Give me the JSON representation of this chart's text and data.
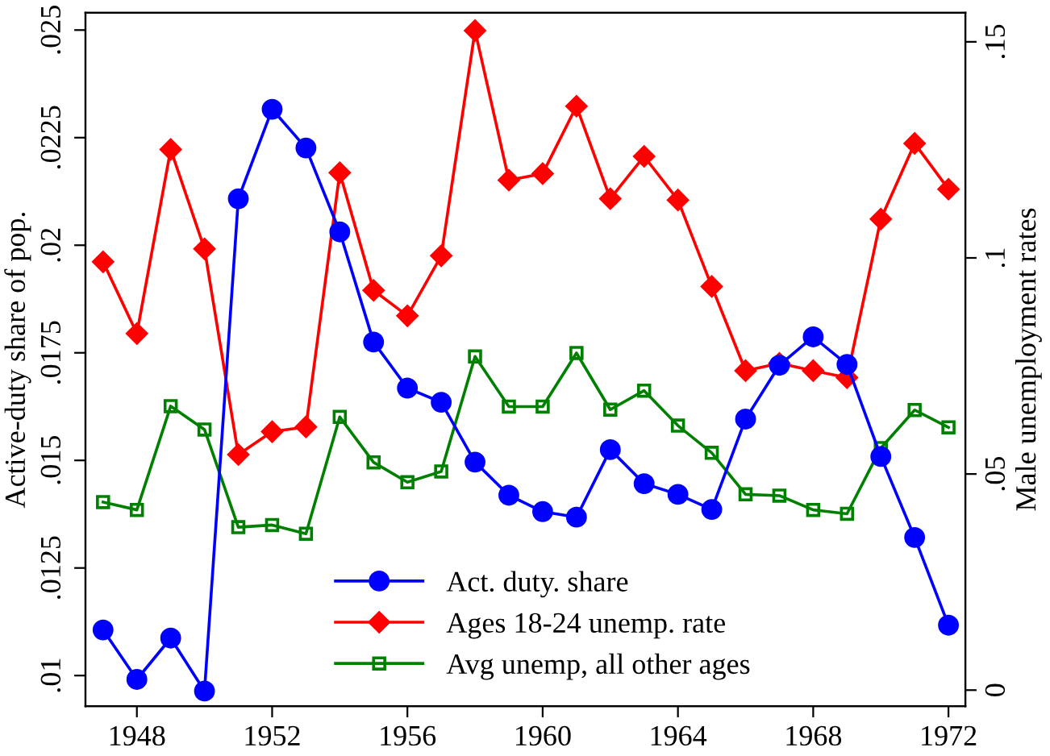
{
  "chart_data": {
    "type": "line",
    "ylabel": "Active-duty share of pop.",
    "y2label": "Male unemployment rates",
    "x": [
      1947,
      1948,
      1949,
      1950,
      1951,
      1952,
      1953,
      1954,
      1955,
      1956,
      1957,
      1958,
      1959,
      1960,
      1961,
      1962,
      1963,
      1964,
      1965,
      1966,
      1967,
      1968,
      1969,
      1970,
      1971,
      1972
    ],
    "series": [
      {
        "name": "Act. duty. share",
        "color": "#0000ff",
        "marker": "circle",
        "values": [
          0.01106,
          0.00991,
          0.01087,
          0.00964,
          0.02108,
          0.02316,
          0.02226,
          0.02031,
          0.01775,
          0.01668,
          0.01635,
          0.01496,
          0.01419,
          0.01381,
          0.01368,
          0.01525,
          0.01446,
          0.01421,
          0.01386,
          0.01596,
          0.01721,
          0.01787,
          0.01723,
          0.01509,
          0.01321,
          0.01117
        ]
      },
      {
        "name": "Ages 18-24 unemp. rate",
        "color": "#ff0000",
        "marker": "diamond",
        "axis": "y2",
        "values": [
          0.0991,
          0.0825,
          0.1251,
          0.1021,
          0.0545,
          0.0598,
          0.0609,
          0.1197,
          0.0925,
          0.0866,
          0.1005,
          0.1526,
          0.118,
          0.1195,
          0.1351,
          0.1137,
          0.1235,
          0.1134,
          0.0934,
          0.0739,
          0.0756,
          0.0739,
          0.0723,
          0.109,
          0.1265,
          0.1159
        ]
      },
      {
        "name": "Avg unemp, all other ages",
        "color": "#008000",
        "marker": "square",
        "axis": "y2",
        "values": [
          0.0435,
          0.0417,
          0.0657,
          0.0603,
          0.0377,
          0.0382,
          0.0362,
          0.0632,
          0.0527,
          0.0481,
          0.0506,
          0.0772,
          0.0656,
          0.0656,
          0.078,
          0.0649,
          0.0693,
          0.0612,
          0.0549,
          0.0453,
          0.045,
          0.0417,
          0.0408,
          0.056,
          0.0648,
          0.0608
        ]
      }
    ],
    "xlim": [
      1946.48,
      1972.5
    ],
    "xticks": [
      1948,
      1952,
      1956,
      1960,
      1964,
      1968,
      1972
    ],
    "ylim": [
      0.00929,
      0.0254
    ],
    "yticks": [
      {
        "value": 0.01,
        "label": ".01"
      },
      {
        "value": 0.0125,
        "label": ".0125"
      },
      {
        "value": 0.015,
        "label": ".015"
      },
      {
        "value": 0.0175,
        "label": ".0175"
      },
      {
        "value": 0.02,
        "label": ".02"
      },
      {
        "value": 0.0225,
        "label": ".0225"
      },
      {
        "value": 0.025,
        "label": ".025"
      }
    ],
    "y2lim": [
      -0.0037,
      0.1567
    ],
    "y2ticks": [
      0,
      {
        "value": 0.05,
        "label": ".05"
      },
      {
        "value": 0.1,
        "label": ".1"
      },
      {
        "value": 0.15,
        "label": ".15"
      }
    ],
    "grid": false,
    "legend": "bottom",
    "line_style": "solid"
  }
}
